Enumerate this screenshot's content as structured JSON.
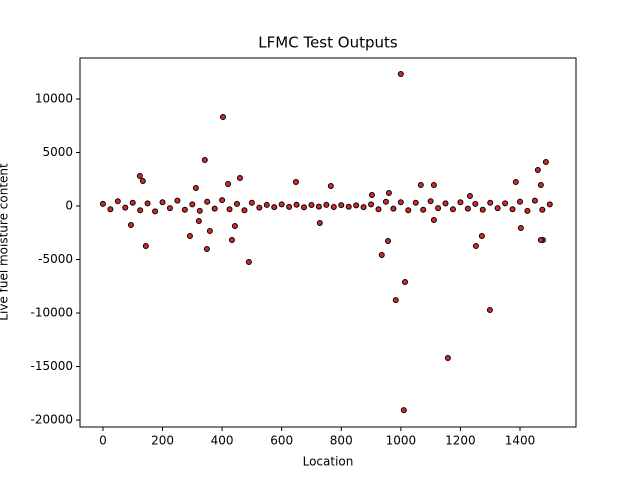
{
  "chart_data": {
    "type": "scatter",
    "title": "LFMC Test Outputs",
    "x_label": "Location",
    "y_label": "Live fuel moisture content",
    "series": [
      {
        "color": "#d62728",
        "edge_color": "#000000",
        "x": [
          0,
          25,
          50,
          75,
          100,
          125,
          150,
          175,
          200,
          225,
          250,
          275,
          300,
          325,
          350,
          375,
          400,
          425,
          450,
          475,
          500,
          525,
          550,
          575,
          600,
          625,
          650,
          675,
          700,
          725,
          750,
          775,
          800,
          825,
          850,
          875,
          900,
          925,
          950,
          975,
          1000,
          1025,
          1050,
          1075,
          1100,
          1125,
          1150,
          1175,
          1200,
          1225,
          1250,
          1275,
          1300,
          1325,
          1350,
          1375,
          1400,
          1425,
          1450,
          1475,
          1500,
          1000,
          403,
          342,
          124,
          134,
          648,
          1010,
          1158,
          1299,
          983,
          1014,
          490,
          936,
          957,
          349,
          144,
          1386,
          1487,
          1460,
          1470,
          1252,
          1272,
          1403,
          1477,
          1470,
          312,
          460,
          420,
          443,
          322,
          292,
          359,
          433,
          728,
          765,
          1067,
          1111,
          1111,
          1232,
          903,
          960,
          94
        ],
        "values": [
          200,
          -300,
          450,
          -150,
          300,
          -400,
          250,
          -500,
          350,
          -200,
          500,
          -350,
          150,
          -450,
          400,
          -250,
          550,
          -300,
          200,
          -400,
          300,
          -150,
          100,
          -100,
          150,
          -80,
          120,
          -120,
          90,
          -60,
          110,
          -90,
          80,
          -70,
          60,
          -100,
          150,
          -300,
          400,
          -250,
          350,
          -400,
          300,
          -350,
          450,
          -200,
          250,
          -300,
          350,
          -250,
          200,
          -350,
          300,
          -200,
          250,
          -300,
          400,
          -450,
          500,
          -350,
          150,
          12340,
          8320,
          4300,
          2800,
          2340,
          2240,
          -19070,
          -14200,
          -9720,
          -8790,
          -7100,
          -5230,
          -4580,
          -3270,
          -4020,
          -3740,
          2240,
          4110,
          3360,
          1960,
          -3740,
          -2800,
          -2060,
          -3180,
          -3180,
          1680,
          2620,
          2060,
          -1870,
          -1400,
          -2800,
          -2340,
          -3180,
          -1590,
          1870,
          1960,
          1960,
          -1310,
          935,
          1030,
          1215,
          -1775
        ]
      }
    ],
    "xlim": [
      -77,
      1588
    ],
    "ylim": [
      -20650,
      13830
    ],
    "xticks": [
      0,
      200,
      400,
      600,
      800,
      1000,
      1200,
      1400
    ],
    "yticks": [
      -20000,
      -15000,
      -10000,
      -5000,
      0,
      5000,
      10000
    ]
  }
}
